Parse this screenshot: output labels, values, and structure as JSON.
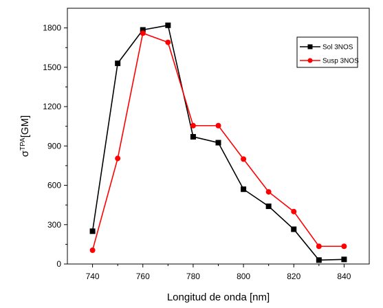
{
  "chart_data": {
    "type": "line",
    "title": "",
    "xlabel": "Longitud de onda [nm]",
    "ylabel": {
      "base": "σ",
      "superscript": "TPA",
      "rest": "[GM]"
    },
    "xlim": [
      730,
      850
    ],
    "ylim": [
      0,
      1950
    ],
    "xticks": [
      740,
      760,
      780,
      800,
      820,
      840
    ],
    "yticks": [
      0,
      300,
      600,
      900,
      1200,
      1500,
      1800
    ],
    "grid": false,
    "legend_position": "top-right",
    "series": [
      {
        "name": "Sol 3NOS",
        "color": "#000000",
        "marker": "square",
        "x": [
          740,
          750,
          760,
          770,
          780,
          790,
          800,
          810,
          820,
          830,
          840
        ],
        "y": [
          250,
          1530,
          1785,
          1820,
          970,
          925,
          570,
          440,
          265,
          30,
          35
        ]
      },
      {
        "name": "Susp 3NOS",
        "color": "#ff0000",
        "marker": "circle",
        "x": [
          740,
          750,
          760,
          770,
          780,
          790,
          800,
          810,
          820,
          830,
          840
        ],
        "y": [
          105,
          805,
          1760,
          1690,
          1055,
          1055,
          800,
          550,
          400,
          135,
          135
        ]
      }
    ]
  }
}
